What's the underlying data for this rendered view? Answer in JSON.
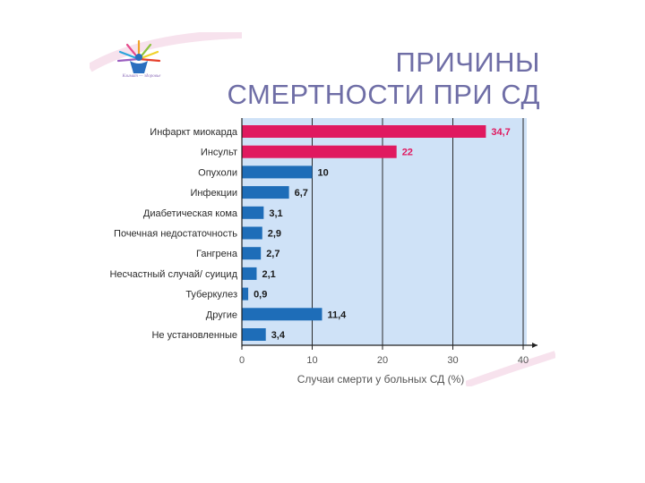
{
  "title": {
    "line1": "ПРИЧИНЫ",
    "line2": "СМЕРТНОСТИ ПРИ СД"
  },
  "logo": {
    "caption": "Климат — здоровье"
  },
  "colors": {
    "highlight": "#e0195f",
    "primary": "#1e6db8",
    "plot_bg": "#cfe2f7",
    "title": "#6f6ea6"
  },
  "chart_data": {
    "type": "bar",
    "orientation": "horizontal",
    "categories": [
      "Инфаркт миокарда",
      "Инсульт",
      "Опухоли",
      "Инфекции",
      "Диабетическая кома",
      "Почечная недостаточность",
      "Гангрена",
      "Несчастный случай/ суицид",
      "Туберкулез",
      "Другие",
      "Не установленные"
    ],
    "values": [
      34.7,
      22,
      10,
      6.7,
      3.1,
      2.9,
      2.7,
      2.1,
      0.9,
      11.4,
      3.4
    ],
    "value_labels": [
      "34,7",
      "22",
      "10",
      "6,7",
      "3,1",
      "2,9",
      "2,7",
      "2,1",
      "0,9",
      "11,4",
      "3,4"
    ],
    "highlighted": [
      true,
      true,
      false,
      false,
      false,
      false,
      false,
      false,
      false,
      false,
      false
    ],
    "xlabel": "Случаи смерти у больных СД (%)",
    "ylabel": "",
    "xlim": [
      0,
      40
    ],
    "xticks": [
      0,
      10,
      20,
      30,
      40
    ],
    "grid": "vertical"
  }
}
